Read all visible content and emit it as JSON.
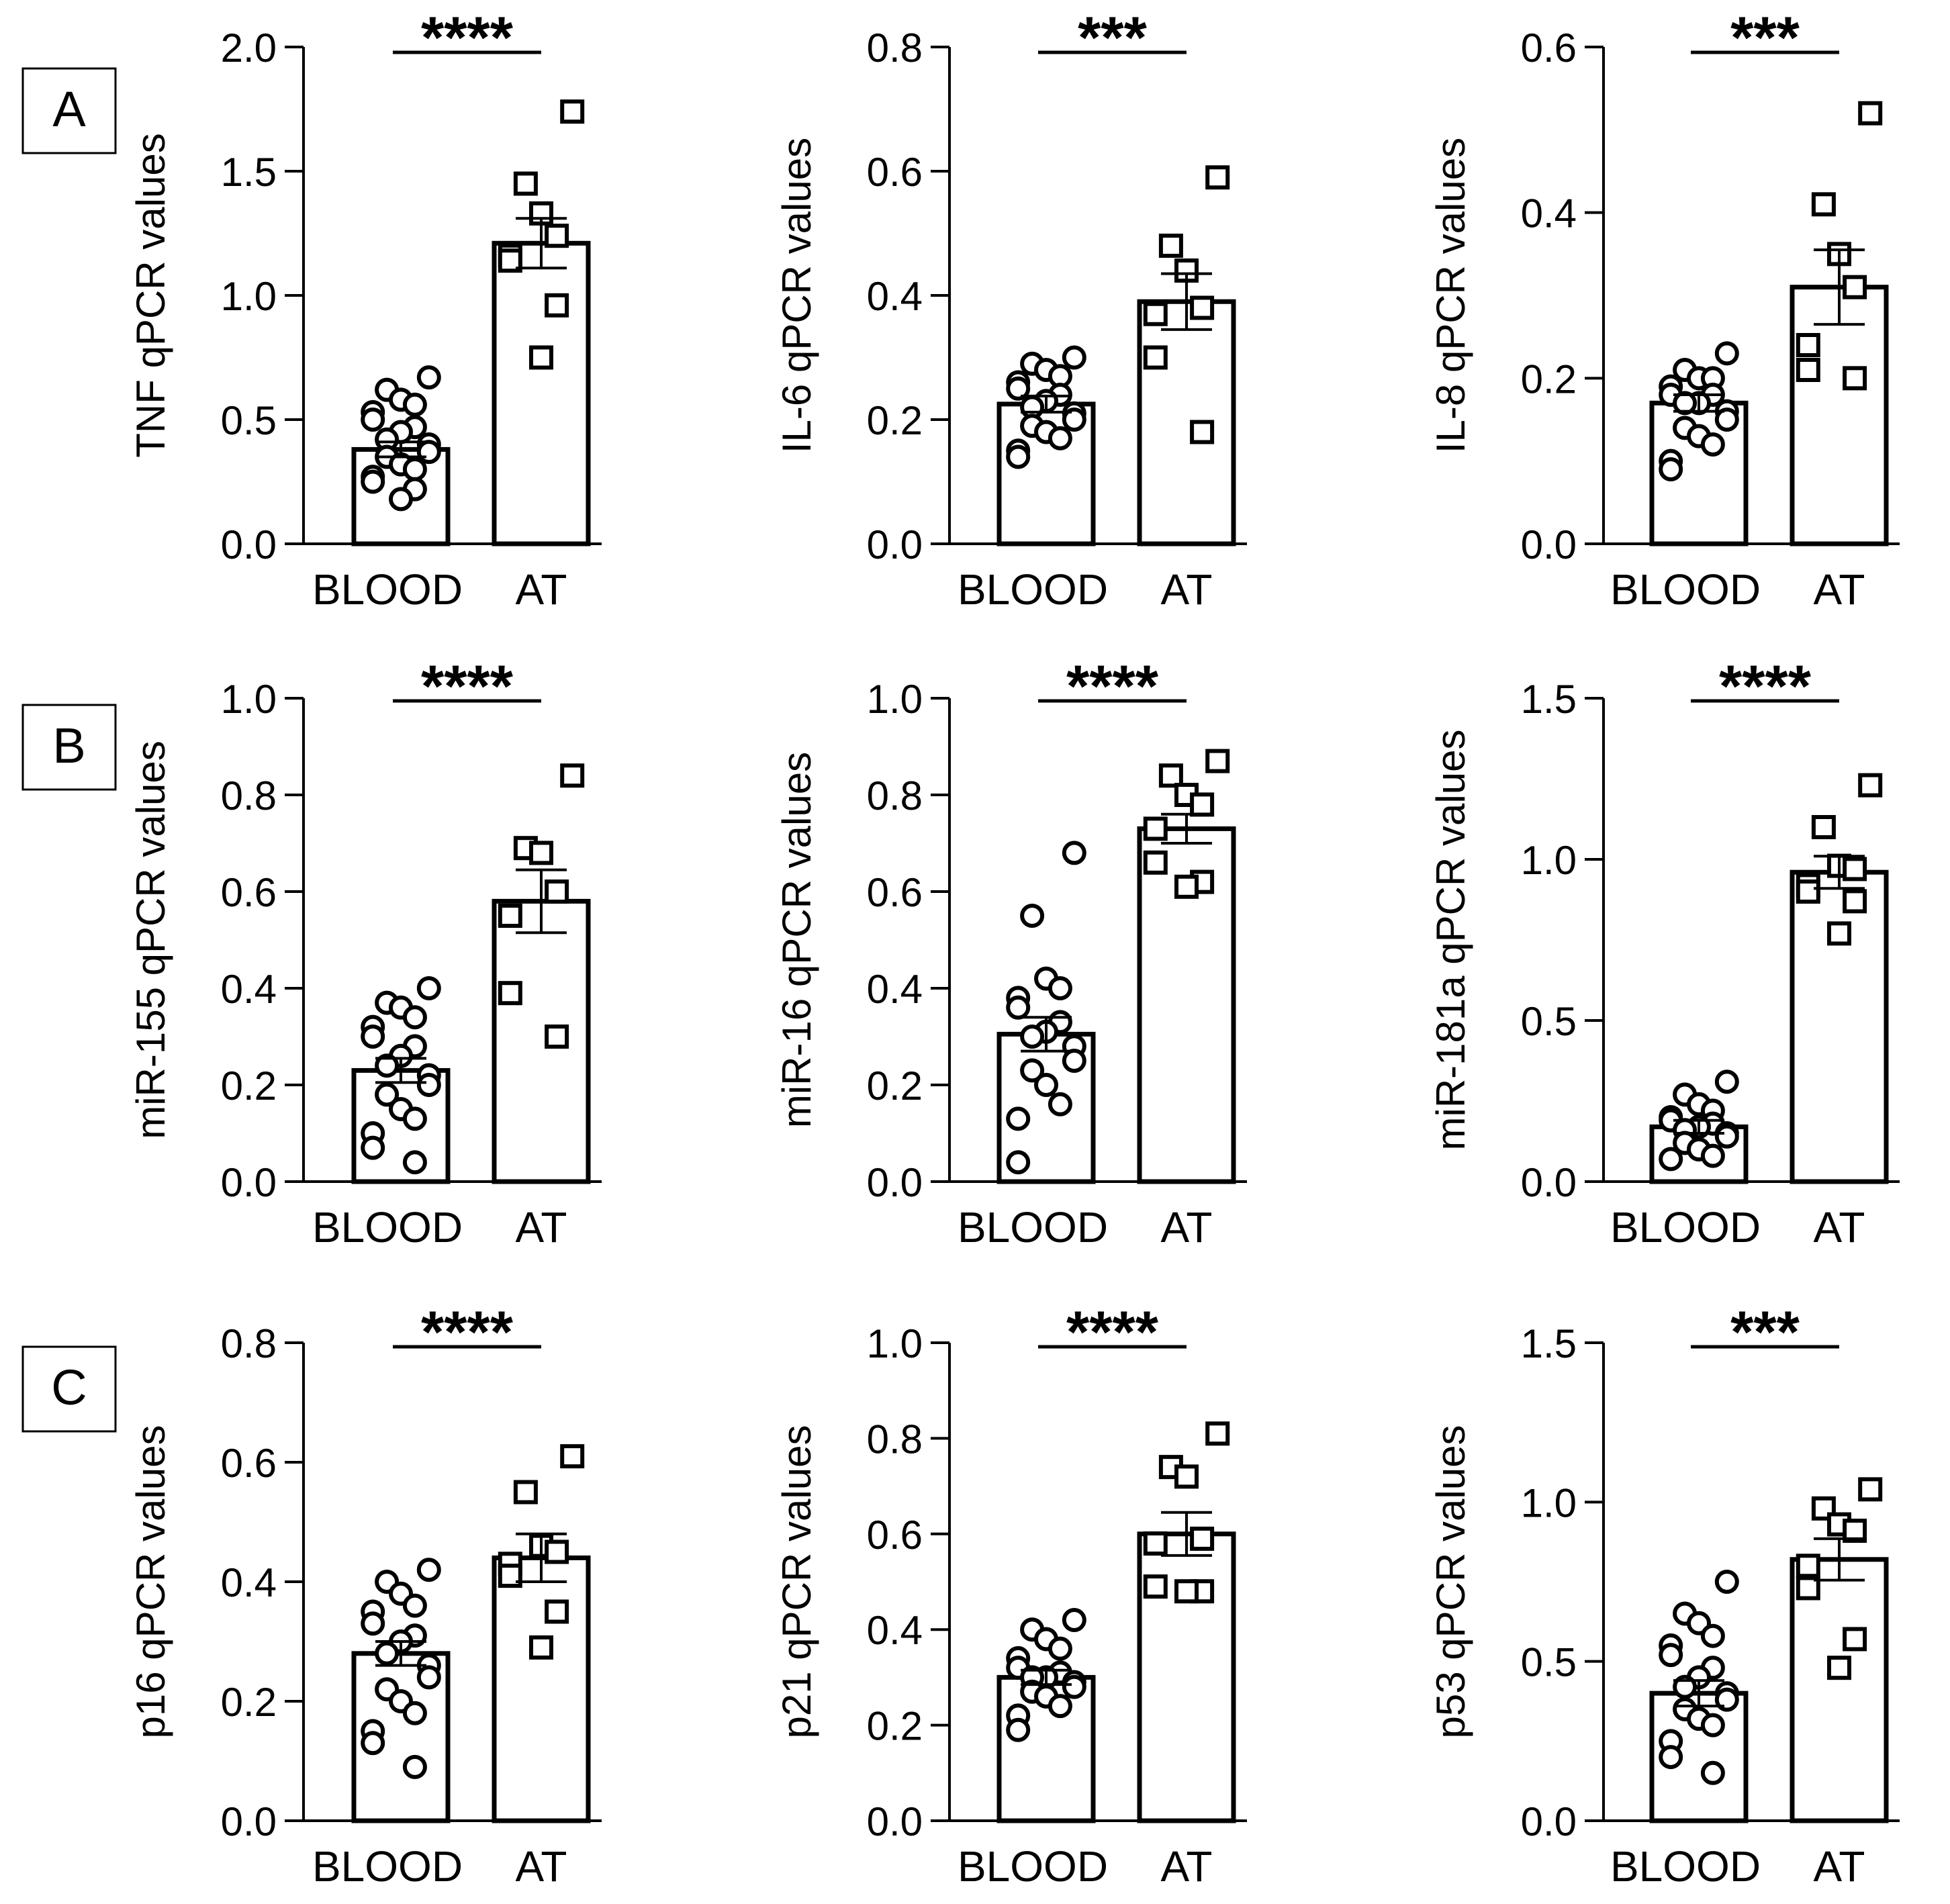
{
  "panel_labels": [
    "A",
    "B",
    "C"
  ],
  "chart_data": [
    {
      "type": "bar",
      "title": "",
      "ylabel": "TNF qPCR values",
      "categories": [
        "BLOOD",
        "AT"
      ],
      "values": [
        0.38,
        1.21
      ],
      "errors": [
        0.03,
        0.1
      ],
      "ylim": [
        0,
        2.0
      ],
      "yticks": [
        "0.0",
        "0.5",
        "1.0",
        "1.5",
        "2.0"
      ],
      "significance": "****",
      "points": [
        [
          0.67,
          0.62,
          0.58,
          0.56,
          0.53,
          0.5,
          0.47,
          0.45,
          0.42,
          0.4,
          0.37,
          0.35,
          0.32,
          0.3,
          0.27,
          0.25,
          0.22,
          0.18
        ],
        [
          1.74,
          1.45,
          1.33,
          1.24,
          1.16,
          1.14,
          0.96,
          0.75
        ]
      ]
    },
    {
      "type": "bar",
      "title": "",
      "ylabel": "IL-6 qPCR values",
      "categories": [
        "BLOOD",
        "AT"
      ],
      "values": [
        0.225,
        0.39
      ],
      "errors": [
        0.013,
        0.045
      ],
      "ylim": [
        0,
        0.8
      ],
      "yticks": [
        "0.0",
        "0.2",
        "0.4",
        "0.6",
        "0.8"
      ],
      "significance": "***",
      "points": [
        [
          0.3,
          0.29,
          0.28,
          0.27,
          0.26,
          0.25,
          0.24,
          0.23,
          0.22,
          0.21,
          0.2,
          0.19,
          0.18,
          0.17,
          0.15,
          0.14
        ],
        [
          0.59,
          0.48,
          0.44,
          0.38,
          0.37,
          0.3,
          0.18
        ]
      ]
    },
    {
      "type": "bar",
      "title": "",
      "ylabel": "IL-8 qPCR values",
      "categories": [
        "BLOOD",
        "AT"
      ],
      "values": [
        0.17,
        0.31
      ],
      "errors": [
        0.01,
        0.045
      ],
      "ylim": [
        0,
        0.6
      ],
      "yticks": [
        "0.0",
        "0.2",
        "0.4",
        "0.6"
      ],
      "significance": "***",
      "points": [
        [
          0.23,
          0.21,
          0.2,
          0.2,
          0.19,
          0.18,
          0.18,
          0.17,
          0.17,
          0.16,
          0.15,
          0.14,
          0.13,
          0.12,
          0.1,
          0.09
        ],
        [
          0.52,
          0.41,
          0.35,
          0.31,
          0.24,
          0.21,
          0.2
        ]
      ]
    },
    {
      "type": "bar",
      "title": "",
      "ylabel": "miR-155 qPCR values",
      "categories": [
        "BLOOD",
        "AT"
      ],
      "values": [
        0.23,
        0.58
      ],
      "errors": [
        0.025,
        0.065
      ],
      "ylim": [
        0,
        1.0
      ],
      "yticks": [
        "0.0",
        "0.2",
        "0.4",
        "0.6",
        "0.8",
        "1.0"
      ],
      "significance": "****",
      "points": [
        [
          0.4,
          0.37,
          0.36,
          0.34,
          0.32,
          0.3,
          0.28,
          0.26,
          0.24,
          0.22,
          0.2,
          0.18,
          0.15,
          0.13,
          0.1,
          0.07,
          0.04
        ],
        [
          0.84,
          0.69,
          0.68,
          0.6,
          0.55,
          0.39,
          0.3
        ]
      ]
    },
    {
      "type": "bar",
      "title": "",
      "ylabel": "miR-16 qPCR values",
      "categories": [
        "BLOOD",
        "AT"
      ],
      "values": [
        0.305,
        0.73
      ],
      "errors": [
        0.035,
        0.03
      ],
      "ylim": [
        0,
        1.0
      ],
      "yticks": [
        "0.0",
        "0.2",
        "0.4",
        "0.6",
        "0.8",
        "1.0"
      ],
      "significance": "****",
      "points": [
        [
          0.68,
          0.55,
          0.42,
          0.4,
          0.38,
          0.36,
          0.33,
          0.31,
          0.3,
          0.28,
          0.25,
          0.23,
          0.2,
          0.16,
          0.13,
          0.04
        ],
        [
          0.87,
          0.84,
          0.8,
          0.78,
          0.73,
          0.66,
          0.62,
          0.61
        ]
      ]
    },
    {
      "type": "bar",
      "title": "",
      "ylabel": "miR-181a qPCR values",
      "categories": [
        "BLOOD",
        "AT"
      ],
      "values": [
        0.17,
        0.96
      ],
      "errors": [
        0.02,
        0.05
      ],
      "ylim": [
        0,
        1.5
      ],
      "yticks": [
        "0.0",
        "0.5",
        "1.0",
        "1.5"
      ],
      "significance": "****",
      "points": [
        [
          0.31,
          0.27,
          0.24,
          0.22,
          0.2,
          0.19,
          0.18,
          0.17,
          0.16,
          0.15,
          0.14,
          0.12,
          0.1,
          0.08,
          0.07
        ],
        [
          1.23,
          1.1,
          0.98,
          0.97,
          0.92,
          0.9,
          0.87,
          0.77
        ]
      ]
    },
    {
      "type": "bar",
      "title": "",
      "ylabel": "p16 qPCR values",
      "categories": [
        "BLOOD",
        "AT"
      ],
      "values": [
        0.28,
        0.44
      ],
      "errors": [
        0.02,
        0.04
      ],
      "ylim": [
        0,
        0.8
      ],
      "yticks": [
        "0.0",
        "0.2",
        "0.4",
        "0.6",
        "0.8"
      ],
      "significance": "****",
      "points": [
        [
          0.42,
          0.4,
          0.38,
          0.36,
          0.35,
          0.33,
          0.31,
          0.3,
          0.28,
          0.26,
          0.24,
          0.22,
          0.2,
          0.18,
          0.15,
          0.13,
          0.09
        ],
        [
          0.61,
          0.55,
          0.46,
          0.45,
          0.43,
          0.41,
          0.35,
          0.29
        ]
      ]
    },
    {
      "type": "bar",
      "title": "",
      "ylabel": "p21 qPCR values",
      "categories": [
        "BLOOD",
        "AT"
      ],
      "values": [
        0.3,
        0.6
      ],
      "errors": [
        0.015,
        0.045
      ],
      "ylim": [
        0,
        1.0
      ],
      "yticks": [
        "0.0",
        "0.2",
        "0.4",
        "0.6",
        "0.8",
        "1.0"
      ],
      "significance": "****",
      "points": [
        [
          0.42,
          0.4,
          0.38,
          0.36,
          0.34,
          0.32,
          0.31,
          0.3,
          0.3,
          0.29,
          0.28,
          0.27,
          0.26,
          0.24,
          0.22,
          0.19
        ],
        [
          0.81,
          0.74,
          0.72,
          0.59,
          0.58,
          0.49,
          0.48,
          0.48
        ]
      ]
    },
    {
      "type": "bar",
      "title": "",
      "ylabel": "p53 qPCR values",
      "categories": [
        "BLOOD",
        "AT"
      ],
      "values": [
        0.4,
        0.82
      ],
      "errors": [
        0.04,
        0.065
      ],
      "ylim": [
        0,
        1.5
      ],
      "yticks": [
        "0.0",
        "0.5",
        "1.0",
        "1.5"
      ],
      "significance": "***",
      "points": [
        [
          0.75,
          0.65,
          0.62,
          0.58,
          0.55,
          0.52,
          0.48,
          0.45,
          0.42,
          0.4,
          0.38,
          0.35,
          0.32,
          0.3,
          0.25,
          0.2,
          0.15
        ],
        [
          1.04,
          0.98,
          0.93,
          0.91,
          0.8,
          0.73,
          0.57,
          0.48
        ]
      ]
    }
  ]
}
